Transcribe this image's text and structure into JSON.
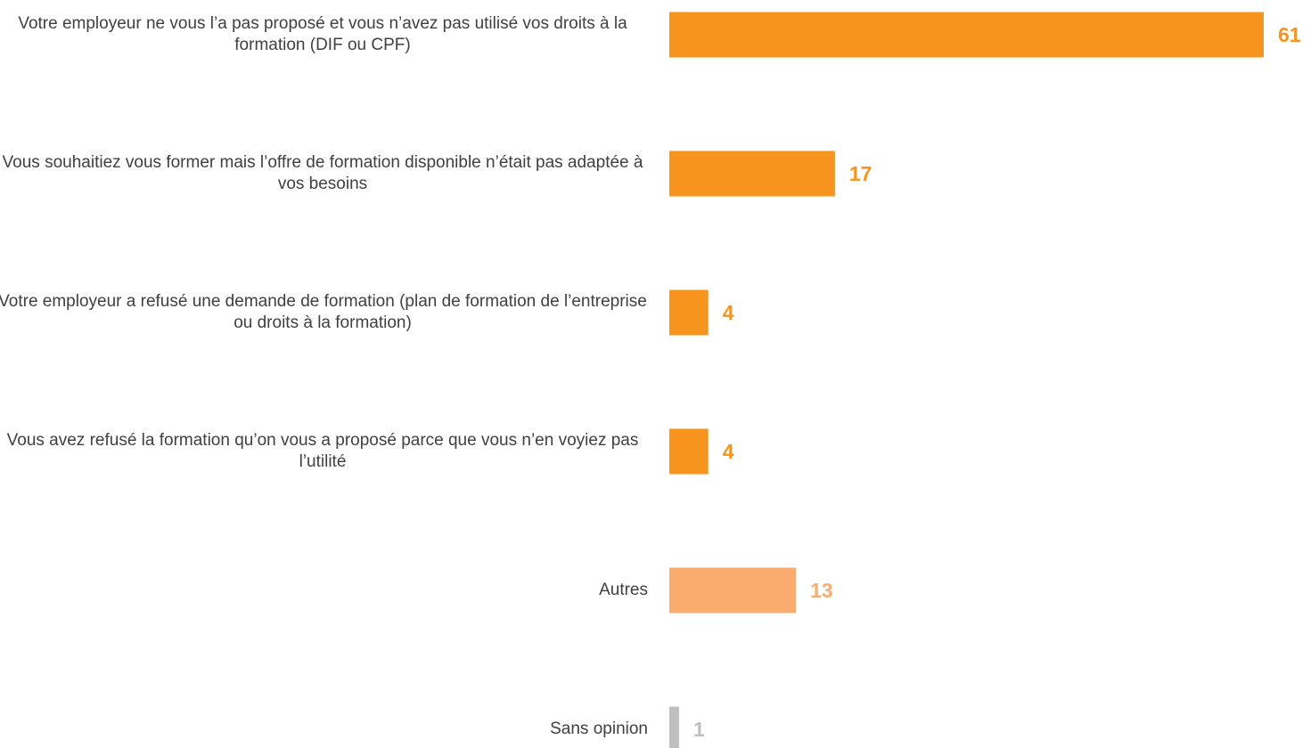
{
  "chart_data": {
    "type": "bar",
    "orientation": "horizontal",
    "categories": [
      "Votre employeur ne vous l’a pas proposé et vous n’avez pas utilisé vos droits à la formation (DIF ou CPF)",
      "Vous souhaitiez vous former mais l’offre de formation disponible n’était pas adaptée à vos besoins",
      "Votre employeur a refusé une demande de formation (plan de formation de l’entreprise ou droits à la formation)",
      "Vous avez refusé la formation qu’on vous a proposé parce que vous n’en voyiez pas l’utilité",
      "Autres",
      "Sans opinion"
    ],
    "values": [
      61,
      17,
      4,
      4,
      13,
      1
    ],
    "colors": [
      "#f7941d",
      "#f7941d",
      "#f7941d",
      "#f7941d",
      "#f9ac6e",
      "#bfbfbf"
    ]
  }
}
